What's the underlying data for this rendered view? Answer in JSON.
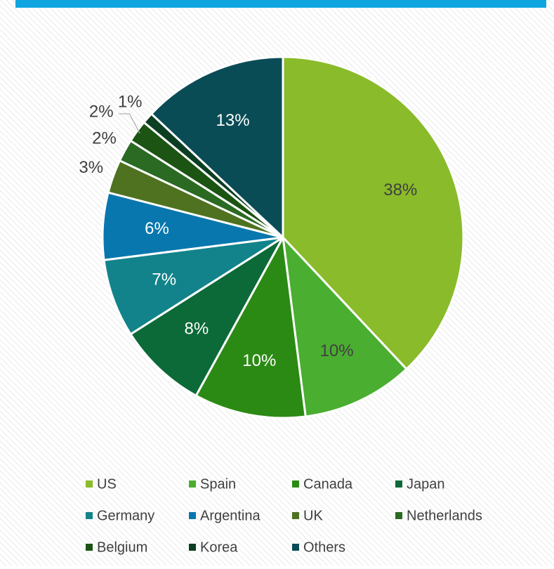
{
  "chart_data": {
    "type": "pie",
    "categories": [
      "US",
      "Spain",
      "Canada",
      "Japan",
      "Germany",
      "Argentina",
      "UK",
      "Netherlands",
      "Belgium",
      "Korea",
      "Others"
    ],
    "values": [
      38,
      10,
      10,
      8,
      7,
      6,
      3,
      2,
      2,
      1,
      13
    ],
    "value_labels": [
      "38%",
      "10%",
      "10%",
      "8%",
      "7%",
      "6%",
      "3%",
      "2%",
      "2%",
      "1%",
      "13%"
    ],
    "colors": [
      "#8abb2a",
      "#4aae30",
      "#2b8a14",
      "#0c6a38",
      "#12838a",
      "#0877ae",
      "#4e7220",
      "#2a6a22",
      "#1b5413",
      "#0c3e22",
      "#0a4c56"
    ],
    "legend": "bottom"
  }
}
